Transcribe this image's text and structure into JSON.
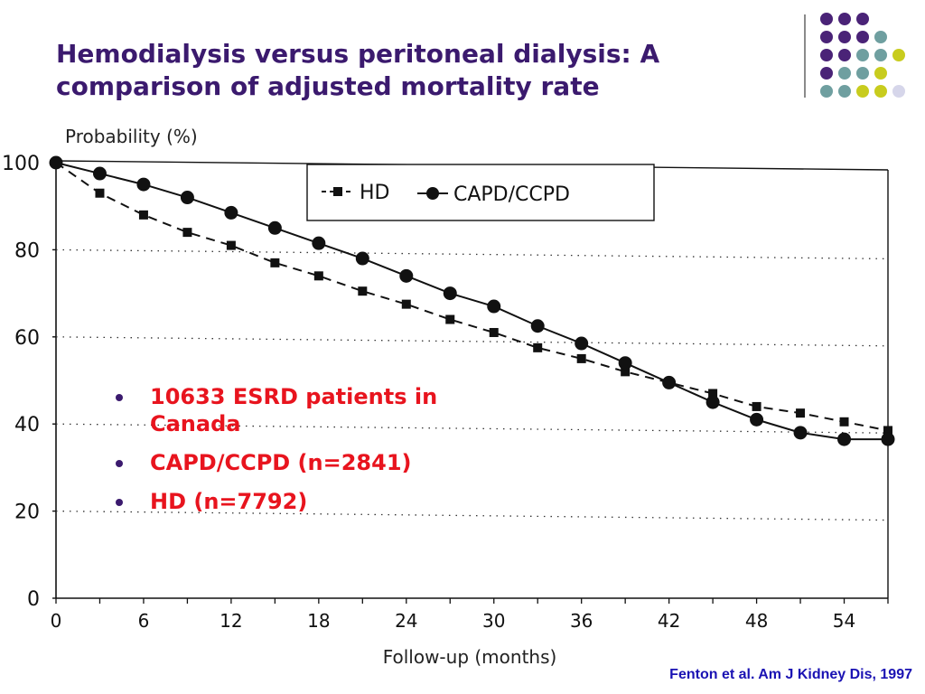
{
  "slide": {
    "title_line1": "Hemodialysis versus peritoneal dialysis: A",
    "title_line2": "comparison of adjusted mortality rate",
    "bullets": [
      "10633 ESRD patients in Canada",
      "CAPD/CCPD (n=2841)",
      "HD (n=7792)"
    ],
    "citation": "Fenton et al. Am J Kidney Dis, 1997",
    "colors": {
      "title": "#3b1a6e",
      "bullet_text": "#e8141e",
      "bullet_marker": "#3b1a6e",
      "citation": "#1a12b3"
    },
    "dot_grid": {
      "colors": {
        "purple": "#4a2377",
        "teal": "#6f9fa0",
        "yellow": "#c8cc1e",
        "lavender": "#d6d6ea"
      },
      "rows": [
        [
          "purple",
          "purple",
          "purple"
        ],
        [
          "purple",
          "purple",
          "purple",
          "teal"
        ],
        [
          "purple",
          "purple",
          "teal",
          "teal",
          "yellow"
        ],
        [
          "purple",
          "teal",
          "teal",
          "yellow"
        ],
        [
          "teal",
          "teal",
          "yellow",
          "yellow",
          "lavender"
        ]
      ]
    }
  },
  "chart_data": {
    "type": "line",
    "ylabel": "Probability (%)",
    "xlabel": "Follow-up (months)",
    "xlim": [
      0,
      57
    ],
    "ylim": [
      0,
      100
    ],
    "xticks": [
      0,
      6,
      12,
      18,
      24,
      30,
      36,
      42,
      48,
      54
    ],
    "yticks": [
      0,
      20,
      40,
      60,
      80,
      100
    ],
    "grid": "dotted horizontal at 20, 40, 60, 80",
    "legend_position": "top-right",
    "series": [
      {
        "name": "HD",
        "marker": "square",
        "line_style": "dashed",
        "x": [
          0,
          3,
          6,
          9,
          12,
          15,
          18,
          21,
          24,
          27,
          30,
          33,
          36,
          39,
          42,
          45,
          48,
          51,
          54,
          57
        ],
        "y": [
          100,
          93,
          88,
          84,
          81,
          77,
          74,
          70.5,
          67.5,
          64,
          61,
          57.5,
          55,
          52,
          49.5,
          47,
          44,
          42.5,
          40.5,
          38.5
        ]
      },
      {
        "name": "CAPD/CCPD",
        "marker": "circle",
        "line_style": "solid",
        "x": [
          0,
          3,
          6,
          9,
          12,
          15,
          18,
          21,
          24,
          27,
          30,
          33,
          36,
          39,
          42,
          45,
          48,
          51,
          54,
          57
        ],
        "y": [
          100,
          97.5,
          95,
          92,
          88.5,
          85,
          81.5,
          78,
          74,
          70,
          67,
          62.5,
          58.5,
          54,
          49.5,
          45,
          41,
          38,
          36.5,
          36.5
        ]
      }
    ]
  }
}
